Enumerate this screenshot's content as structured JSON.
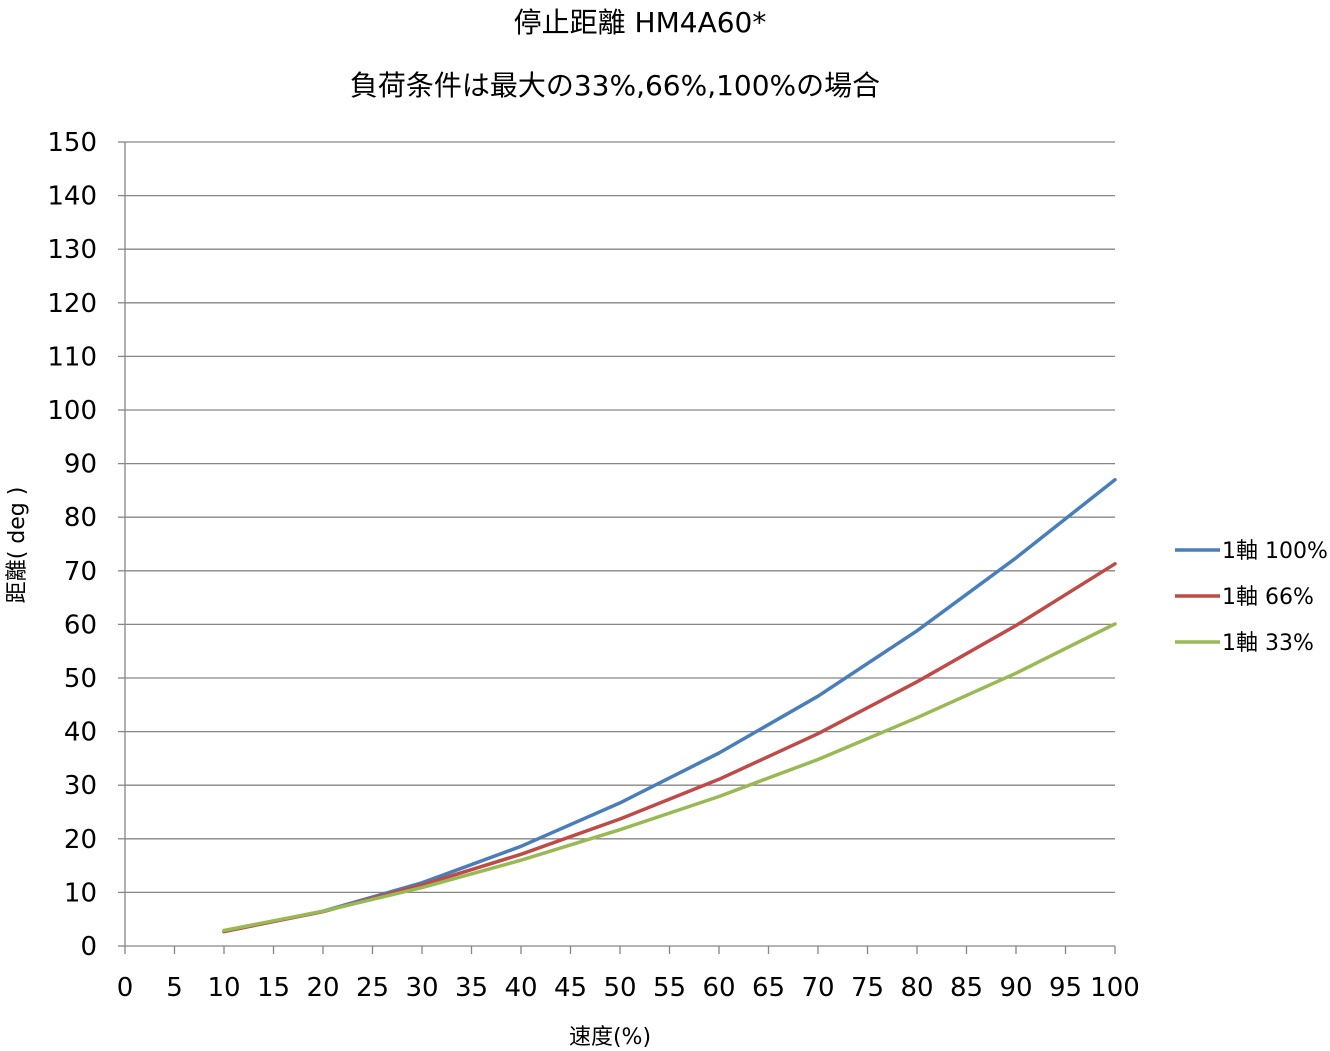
{
  "chart_data": {
    "type": "line",
    "title": "停止距離 HM4A60*",
    "subtitle": "負荷条件は最大の33%,66%,100%の場合",
    "xlabel": "速度(%)",
    "ylabel": "距離( deg )",
    "xlim": [
      0,
      100
    ],
    "ylim": [
      0,
      150
    ],
    "x_ticks": [
      "0",
      "5",
      "10",
      "15",
      "20",
      "25",
      "30",
      "35",
      "40",
      "45",
      "50",
      "55",
      "60",
      "65",
      "70",
      "75",
      "80",
      "85",
      "90",
      "95",
      "100"
    ],
    "y_ticks": [
      "0",
      "10",
      "20",
      "30",
      "40",
      "50",
      "60",
      "70",
      "80",
      "90",
      "100",
      "110",
      "120",
      "130",
      "140",
      "150"
    ],
    "grid": true,
    "legend_position": "right",
    "x": [
      10,
      20,
      30,
      40,
      50,
      60,
      70,
      80,
      90,
      100
    ],
    "series": [
      {
        "name": "1軸 100%",
        "color": "#4a7ebb",
        "values": [
          2.7,
          6.5,
          11.8,
          18.6,
          26.7,
          36.0,
          46.6,
          58.8,
          72.4,
          87.0
        ]
      },
      {
        "name": "1軸 66%",
        "color": "#be4b48",
        "values": [
          2.7,
          6.4,
          11.4,
          17.1,
          23.7,
          31.1,
          39.6,
          49.3,
          59.8,
          71.3
        ]
      },
      {
        "name": "1軸 33%",
        "color": "#98b954",
        "values": [
          2.9,
          6.5,
          10.9,
          16.0,
          21.7,
          27.9,
          34.8,
          42.6,
          50.9,
          60.1
        ]
      }
    ]
  }
}
